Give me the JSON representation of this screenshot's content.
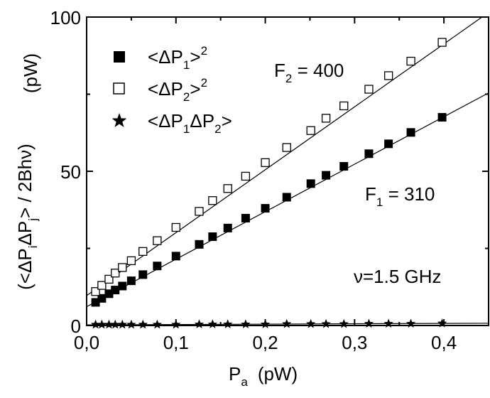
{
  "chart_data": {
    "type": "scatter",
    "xlabel": {
      "main": "P",
      "sub": "a",
      "unit": "(pW)"
    },
    "ylabel": {
      "pre": "(<ΔP",
      "sub_i": "i",
      "mid": "ΔP",
      "sub_j": "j",
      "post": "> / 2Bhν)",
      "unit": "(pW)"
    },
    "xlim": [
      0.0,
      0.45
    ],
    "ylim": [
      0,
      100
    ],
    "x_ticks": [
      0.0,
      0.1,
      0.2,
      0.3,
      0.4
    ],
    "x_tick_labels": [
      "0,0",
      "0,1",
      "0,2",
      "0,3",
      "0,4"
    ],
    "y_ticks": [
      0,
      50,
      100
    ],
    "y_tick_labels": [
      "0",
      "50",
      "100"
    ],
    "grid": false,
    "legend_position": "top-left",
    "series": [
      {
        "marker": "filled-square",
        "legend": {
          "pre": "<ΔP",
          "sub": "1",
          "post": ">",
          "sup": "2"
        },
        "x": [
          0.01,
          0.017,
          0.025,
          0.032,
          0.04,
          0.05,
          0.063,
          0.079,
          0.1,
          0.126,
          0.141,
          0.158,
          0.178,
          0.2,
          0.224,
          0.251,
          0.268,
          0.288,
          0.316,
          0.338,
          0.363,
          0.398
        ],
        "y": [
          7.5,
          8.8,
          10.3,
          11.5,
          12.8,
          14.5,
          16.5,
          19.3,
          22.5,
          26.3,
          28.8,
          31.6,
          34.8,
          38.0,
          41.6,
          46.0,
          48.7,
          51.6,
          55.7,
          58.9,
          62.6,
          67.5
        ],
        "fit": {
          "intercept": 6.1,
          "slope": 154
        }
      },
      {
        "marker": "open-square",
        "legend": {
          "pre": "<ΔP",
          "sub": "2",
          "post": ">",
          "sup": "2"
        },
        "x": [
          0.01,
          0.017,
          0.025,
          0.032,
          0.04,
          0.05,
          0.063,
          0.079,
          0.1,
          0.126,
          0.141,
          0.158,
          0.178,
          0.2,
          0.224,
          0.251,
          0.268,
          0.288,
          0.316,
          0.338,
          0.363,
          0.398
        ],
        "y": [
          11.0,
          13.0,
          15.0,
          17.0,
          18.8,
          21.0,
          24.0,
          27.5,
          31.8,
          37.0,
          40.5,
          44.4,
          48.4,
          52.8,
          57.7,
          63.2,
          67.2,
          71.2,
          76.6,
          81.0,
          85.7,
          91.8
        ],
        "fit": {
          "intercept": 9.7,
          "slope": 204
        }
      },
      {
        "marker": "filled-star",
        "legend": {
          "pre": "<ΔP",
          "sub1": "1",
          "mid": "ΔP",
          "sub2": "2",
          "post": ">"
        },
        "x": [
          0.01,
          0.017,
          0.025,
          0.032,
          0.04,
          0.05,
          0.063,
          0.079,
          0.1,
          0.126,
          0.141,
          0.158,
          0.178,
          0.2,
          0.224,
          0.251,
          0.268,
          0.288,
          0.316,
          0.338,
          0.363,
          0.398
        ],
        "y": [
          0.3,
          0.3,
          0.3,
          0.3,
          0.3,
          0.3,
          0.3,
          0.3,
          0.3,
          0.4,
          0.4,
          0.4,
          0.4,
          0.4,
          0.5,
          0.5,
          0.5,
          0.5,
          0.6,
          0.6,
          0.6,
          0.7
        ],
        "fit": {
          "intercept": 0.2,
          "slope": 1.2
        }
      }
    ],
    "annotations": {
      "f2": {
        "main": "F",
        "sub": "2",
        "post": " = 400"
      },
      "f1": {
        "main": "F",
        "sub": "1",
        "post": " = 310"
      },
      "nu": "ν=1.5 GHz"
    }
  }
}
